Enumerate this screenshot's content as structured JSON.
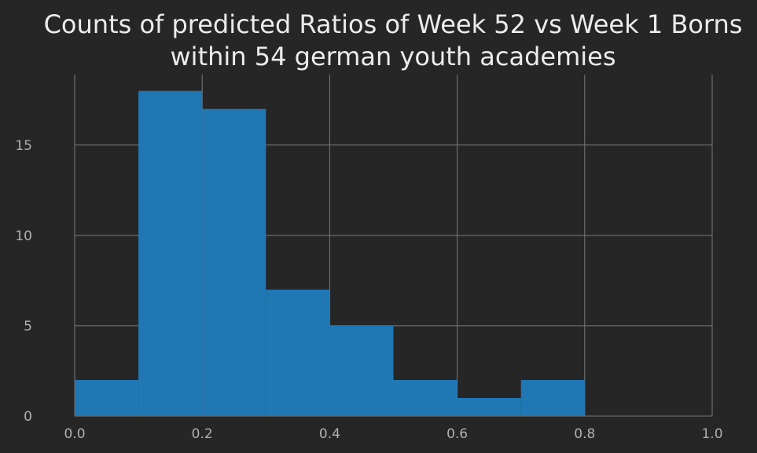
{
  "chart_data": {
    "type": "bar",
    "title_lines": [
      "Counts of predicted Ratios of Week 52 vs Week 1 Borns",
      "within 54 german youth academies"
    ],
    "xlabel": "",
    "ylabel": "",
    "bins": [
      {
        "x0": 0.0,
        "x1": 0.1,
        "count": 2
      },
      {
        "x0": 0.1,
        "x1": 0.2,
        "count": 18
      },
      {
        "x0": 0.2,
        "x1": 0.3,
        "count": 17
      },
      {
        "x0": 0.3,
        "x1": 0.4,
        "count": 7
      },
      {
        "x0": 0.4,
        "x1": 0.5,
        "count": 5
      },
      {
        "x0": 0.5,
        "x1": 0.6,
        "count": 2
      },
      {
        "x0": 0.6,
        "x1": 0.7,
        "count": 1
      },
      {
        "x0": 0.7,
        "x1": 0.8,
        "count": 2
      }
    ],
    "xlim": [
      0.0,
      1.0
    ],
    "ylim": [
      0,
      18.9
    ],
    "xticks": [
      0.0,
      0.2,
      0.4,
      0.6,
      0.8,
      1.0
    ],
    "xtick_labels": [
      "0.0",
      "0.2",
      "0.4",
      "0.6",
      "0.8",
      "1.0"
    ],
    "yticks": [
      0,
      5,
      10,
      15
    ],
    "ytick_labels": [
      "0",
      "5",
      "10",
      "15"
    ],
    "grid": true,
    "colors": {
      "background": "#262626",
      "bar": "#1f77b4",
      "grid": "#7a7a7a",
      "title": "#ececec",
      "tick_label": "#b0b0b0"
    }
  }
}
